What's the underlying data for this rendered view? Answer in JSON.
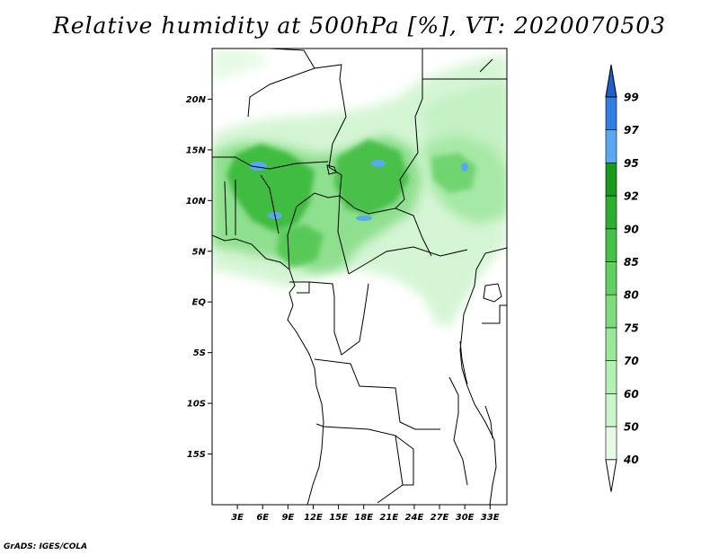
{
  "title": "Relative humidity at 500hPa [%], VT: 2020070503",
  "credit": "GrADS: IGES/COLA",
  "map": {
    "lon_range": [
      0,
      35
    ],
    "lat_range": [
      -20,
      25
    ],
    "lat_ticks": [
      {
        "value": 20,
        "label": "20N"
      },
      {
        "value": 15,
        "label": "15N"
      },
      {
        "value": 10,
        "label": "10N"
      },
      {
        "value": 5,
        "label": "5N"
      },
      {
        "value": 0,
        "label": "EQ"
      },
      {
        "value": -5,
        "label": "5S"
      },
      {
        "value": -10,
        "label": "10S"
      },
      {
        "value": -15,
        "label": "15S"
      }
    ],
    "lon_ticks": [
      {
        "value": 3,
        "label": "3E"
      },
      {
        "value": 6,
        "label": "6E"
      },
      {
        "value": 9,
        "label": "9E"
      },
      {
        "value": 12,
        "label": "12E"
      },
      {
        "value": 15,
        "label": "15E"
      },
      {
        "value": 18,
        "label": "18E"
      },
      {
        "value": 21,
        "label": "21E"
      },
      {
        "value": 24,
        "label": "24E"
      },
      {
        "value": 27,
        "label": "27E"
      },
      {
        "value": 30,
        "label": "30E"
      },
      {
        "value": 33,
        "label": "33E"
      }
    ]
  },
  "colorbar": {
    "levels": [
      "40",
      "50",
      "60",
      "70",
      "75",
      "80",
      "85",
      "90",
      "92",
      "95",
      "97",
      "99"
    ],
    "colors": [
      "#e6fae6",
      "#cdf5cd",
      "#b4efb4",
      "#9ae69a",
      "#7edc7e",
      "#62d062",
      "#46c046",
      "#2eae2e",
      "#1a9a1a",
      "#5aa8f0",
      "#2e7fe0",
      "#1f5fc8"
    ]
  }
}
